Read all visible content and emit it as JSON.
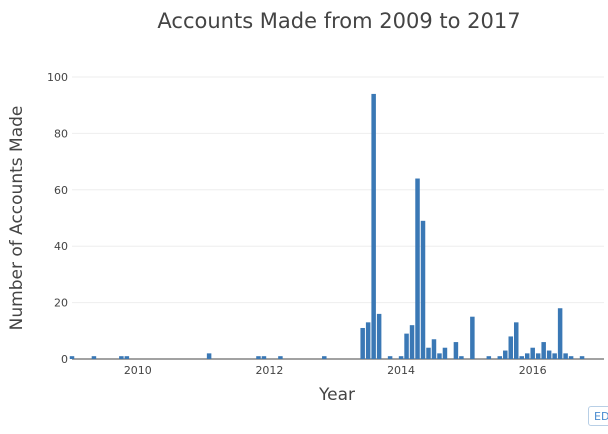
{
  "edit_label": "EDIT",
  "chart_data": {
    "type": "bar",
    "title": "Accounts Made from 2009 to 2017",
    "xlabel": "Year",
    "ylabel": "Number of Accounts Made",
    "ylim": [
      0,
      100
    ],
    "yticks": [
      0,
      20,
      40,
      60,
      80,
      100
    ],
    "xlim": [
      "2009-01",
      "2017-02"
    ],
    "xticks": [
      "2010",
      "2012",
      "2014",
      "2016"
    ],
    "grid": true,
    "bar_color": "#3a78b5",
    "x": [
      "2009-01",
      "2009-05",
      "2009-10",
      "2009-11",
      "2011-02",
      "2011-11",
      "2011-12",
      "2012-03",
      "2012-11",
      "2013-06",
      "2013-07",
      "2013-08",
      "2013-09",
      "2013-11",
      "2014-01",
      "2014-02",
      "2014-03",
      "2014-04",
      "2014-05",
      "2014-06",
      "2014-07",
      "2014-08",
      "2014-09",
      "2014-11",
      "2014-12",
      "2015-02",
      "2015-05",
      "2015-07",
      "2015-08",
      "2015-09",
      "2015-10",
      "2015-11",
      "2015-12",
      "2016-01",
      "2016-02",
      "2016-03",
      "2016-04",
      "2016-05",
      "2016-06",
      "2016-07",
      "2016-08",
      "2016-10"
    ],
    "values": [
      1,
      1,
      1,
      1,
      2,
      1,
      1,
      1,
      1,
      11,
      13,
      94,
      16,
      1,
      1,
      9,
      12,
      64,
      49,
      4,
      7,
      2,
      4,
      6,
      1,
      15,
      1,
      1,
      3,
      8,
      13,
      1,
      2,
      4,
      2,
      6,
      3,
      2,
      18,
      2,
      1,
      1
    ]
  }
}
